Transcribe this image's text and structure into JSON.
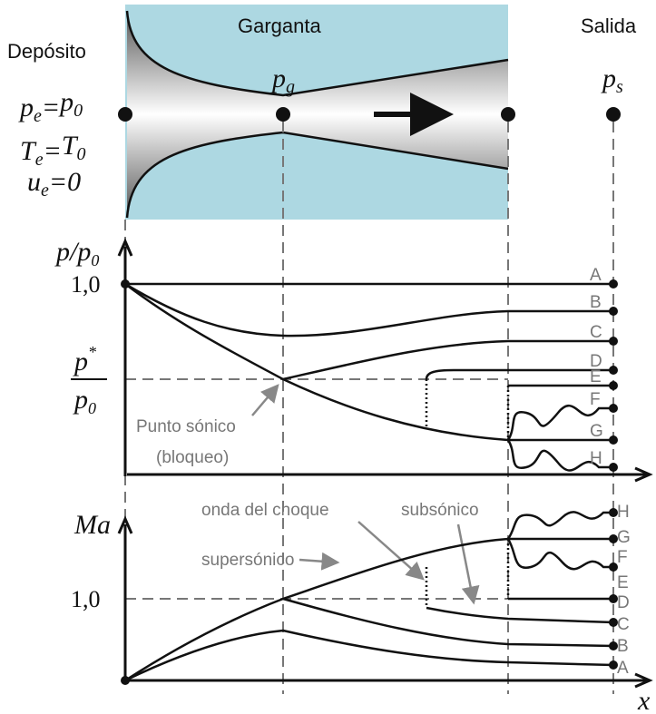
{
  "header": {
    "reservoir": "Depósito",
    "throat": "Garganta",
    "exit": "Salida"
  },
  "symbols": {
    "pg": [
      "p",
      "g"
    ],
    "ps": [
      "p",
      "s"
    ]
  },
  "reservoir_conditions": [
    [
      "p",
      "e",
      "=",
      "p",
      "0"
    ],
    [
      "T",
      "e",
      "=",
      "T",
      "0"
    ],
    [
      "u",
      "e",
      "=0"
    ]
  ],
  "pressure_plot": {
    "axis_label": [
      "p",
      "/",
      "p",
      "0"
    ],
    "tick_one": "1,0",
    "critical_label": {
      "numerator": [
        "p",
        "*"
      ],
      "denominator": [
        "p",
        "0"
      ]
    },
    "annotation": [
      "Punto sónico",
      "(bloqueo)"
    ],
    "curve_labels": [
      "A",
      "B",
      "C",
      "D",
      "E",
      "F",
      "G",
      "H"
    ]
  },
  "mach_plot": {
    "axis_label": "Ma",
    "tick_one": "1,0",
    "annotations": {
      "shock": "onda del choque",
      "subsonic": "subsónico",
      "supersonic": "supersónico"
    },
    "curve_labels": [
      "H",
      "G",
      "F",
      "E",
      "D",
      "C",
      "B",
      "A"
    ]
  },
  "x_axis_label": "x"
}
